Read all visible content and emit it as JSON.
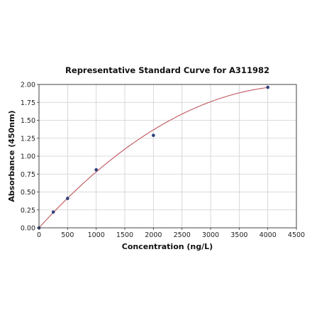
{
  "chart_data": {
    "type": "scatter",
    "title": "Representative Standard Curve for A311982",
    "xlabel": "Concentration (ng/L)",
    "ylabel": "Absorbance (450nm)",
    "xlim": [
      0,
      4500
    ],
    "ylim": [
      0,
      2.0
    ],
    "xticks": [
      "0",
      "500",
      "1000",
      "1500",
      "2000",
      "2500",
      "3000",
      "3500",
      "4000",
      "4500"
    ],
    "yticks": [
      "0.00",
      "0.25",
      "0.50",
      "0.75",
      "1.00",
      "1.25",
      "1.50",
      "1.75",
      "2.00"
    ],
    "grid": true,
    "series": [
      {
        "points": [
          {
            "x": 0,
            "y": 0.0
          },
          {
            "x": 250,
            "y": 0.22
          },
          {
            "x": 500,
            "y": 0.41
          },
          {
            "x": 1000,
            "y": 0.81
          },
          {
            "x": 2000,
            "y": 1.29
          },
          {
            "x": 4000,
            "y": 1.96
          }
        ],
        "fit_curve": {
          "type": "quadratic",
          "coef": [
            0.0,
            0.000877,
            -9.69e-08
          ],
          "x_range": [
            0,
            4000
          ]
        }
      }
    ],
    "colors": {
      "points": "#2e3f7a",
      "curve": "#c0555f",
      "grid": "#cfcfcf"
    }
  }
}
